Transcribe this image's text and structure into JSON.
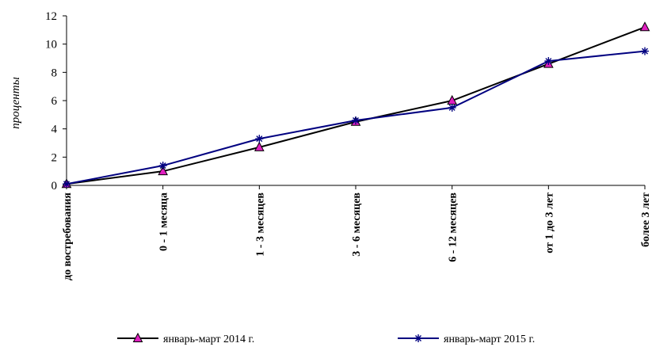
{
  "chart_data": {
    "type": "line",
    "title": "",
    "xlabel": "",
    "ylabel": "проценты",
    "ylim": [
      0,
      12
    ],
    "yticks": [
      0,
      2,
      4,
      6,
      8,
      10,
      12
    ],
    "grid": false,
    "legend_position": "bottom",
    "categories": [
      "до востребования",
      "0 - 1 месяца",
      "1 - 3 месяцев",
      "3 - 6 месяцев",
      "6 - 12 месяцев",
      "от 1 до 3 лет",
      "более 3 лет"
    ],
    "series": [
      {
        "name": "январь-март 2014 г.",
        "values": [
          0.1,
          1.0,
          2.7,
          4.5,
          6.0,
          8.6,
          11.2
        ],
        "line_color": "#000000",
        "marker": "triangle",
        "marker_color": "#e020c0"
      },
      {
        "name": "январь-март 2015 г.",
        "values": [
          0.1,
          1.4,
          3.3,
          4.6,
          5.5,
          8.8,
          9.5
        ],
        "line_color": "#000080",
        "marker": "asterisk",
        "marker_color": "#000080"
      }
    ]
  }
}
